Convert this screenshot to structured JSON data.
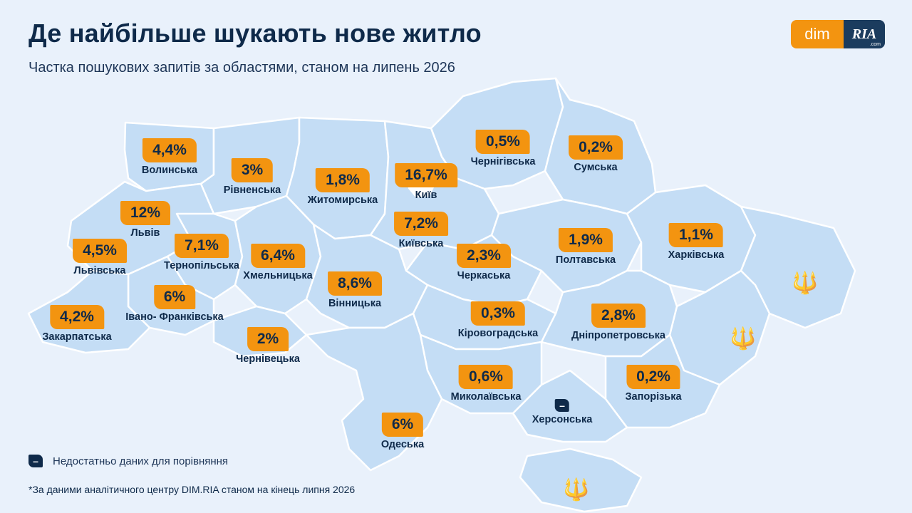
{
  "header": {
    "title": "Де найбільше шукають нове житло",
    "subtitle": "Частка пошукових запитів за областями, станом на липень 2026"
  },
  "logo": {
    "left": "dim",
    "right": "RIA",
    "domain": ".com"
  },
  "regions": [
    {
      "name": "Волинська",
      "value": "4,4%"
    },
    {
      "name": "Рівненська",
      "value": "3%"
    },
    {
      "name": "Житомирська",
      "value": "1,8%"
    },
    {
      "name": "Київ",
      "value": "16,7%"
    },
    {
      "name": "Чернігівська",
      "value": "0,5%"
    },
    {
      "name": "Сумська",
      "value": "0,2%"
    },
    {
      "name": "Львів",
      "value": "12%"
    },
    {
      "name": "Київська",
      "value": "7,2%"
    },
    {
      "name": "Львівська",
      "value": "4,5%"
    },
    {
      "name": "Тернопільська",
      "value": "7,1%"
    },
    {
      "name": "Хмельницька",
      "value": "6,4%"
    },
    {
      "name": "Черкаська",
      "value": "2,3%"
    },
    {
      "name": "Полтавська",
      "value": "1,9%"
    },
    {
      "name": "Харківська",
      "value": "1,1%"
    },
    {
      "name": "Вінницька",
      "value": "8,6%"
    },
    {
      "name": "Івано- Франківська",
      "value": "6%"
    },
    {
      "name": "Закарпатська",
      "value": "4,2%"
    },
    {
      "name": "Кіровоградська",
      "value": "0,3%"
    },
    {
      "name": "Дніпропетровська",
      "value": "2,8%"
    },
    {
      "name": "Чернівецька",
      "value": "2%"
    },
    {
      "name": "Миколаївська",
      "value": "0,6%"
    },
    {
      "name": "Запорізька",
      "value": "0,2%"
    },
    {
      "name": "Херсонська",
      "value": "–"
    },
    {
      "name": "Одеська",
      "value": "6%"
    }
  ],
  "legend": {
    "symbol": "–",
    "text": "Недостатньо даних для порівняння"
  },
  "footnote": "*За даними аналітичного центру DIM.RIA станом на кінець липня 2026",
  "icons": [
    "ukraine-trident-icon"
  ],
  "colors": {
    "accent": "#f39410",
    "dark": "#0f2a4a",
    "map_fill": "#c4ddf5",
    "background": "#e9f1fb"
  }
}
